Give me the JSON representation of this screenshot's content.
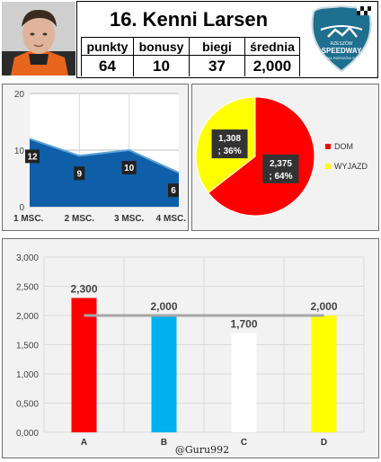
{
  "header": {
    "title": "16. Kenni Larsen",
    "stats": [
      {
        "label": "punkty",
        "value": "64"
      },
      {
        "label": "bonusy",
        "value": "10"
      },
      {
        "label": "biegi",
        "value": "37"
      },
      {
        "label": "średnia",
        "value": "2,000"
      }
    ],
    "logo_text": {
      "line1": "RZESZÓW",
      "line2": "SPEEDWAY",
      "line3": "STAL RZESZÓW S.A."
    },
    "colors": {
      "logo": "#1f6f8f",
      "photo_bg": "#2b2b2b",
      "photo_accent": "#e8651e"
    }
  },
  "chart_data": [
    {
      "type": "area",
      "categories": [
        "1 MSC.",
        "2 MSC.",
        "3 MSC.",
        "4 MSC."
      ],
      "values": [
        12,
        9,
        10,
        6
      ],
      "data_labels": [
        "12",
        "9",
        "10",
        "6"
      ],
      "ylim": [
        0,
        20
      ],
      "yticks": [
        "0",
        "10",
        "20"
      ],
      "grid": true,
      "colors": {
        "fill": "#0f5ea8",
        "line": "#5ba3d9",
        "label_bg": "#222222"
      }
    },
    {
      "type": "pie",
      "slices": [
        {
          "name": "DOM",
          "value": 2.375,
          "percent": 64,
          "label": "2,375 ; 64%",
          "color": "#ff0000"
        },
        {
          "name": "WYJAZD",
          "value": 1.308,
          "percent": 36,
          "label": "1,308 ; 36%",
          "color": "#ffff00"
        }
      ],
      "legend_position": "right",
      "colors": {
        "label_bg": "#333333"
      }
    },
    {
      "type": "bar",
      "categories": [
        "A",
        "B",
        "C",
        "D"
      ],
      "values": [
        2.3,
        2.0,
        1.7,
        2.0
      ],
      "data_labels": [
        "2,300",
        "2,000",
        "1,700",
        "2,000"
      ],
      "ylim": [
        0,
        3
      ],
      "yticks": [
        "0,000",
        "0,500",
        "1,000",
        "1,500",
        "2,000",
        "2,500",
        "3,000"
      ],
      "reference_line": 2.0,
      "grid": true,
      "colors": {
        "bars": [
          "#ff0000",
          "#00b0f0",
          "#ffffff",
          "#ffff00"
        ],
        "reference": "#a6a6a6"
      }
    }
  ],
  "credit": "@Guru992"
}
